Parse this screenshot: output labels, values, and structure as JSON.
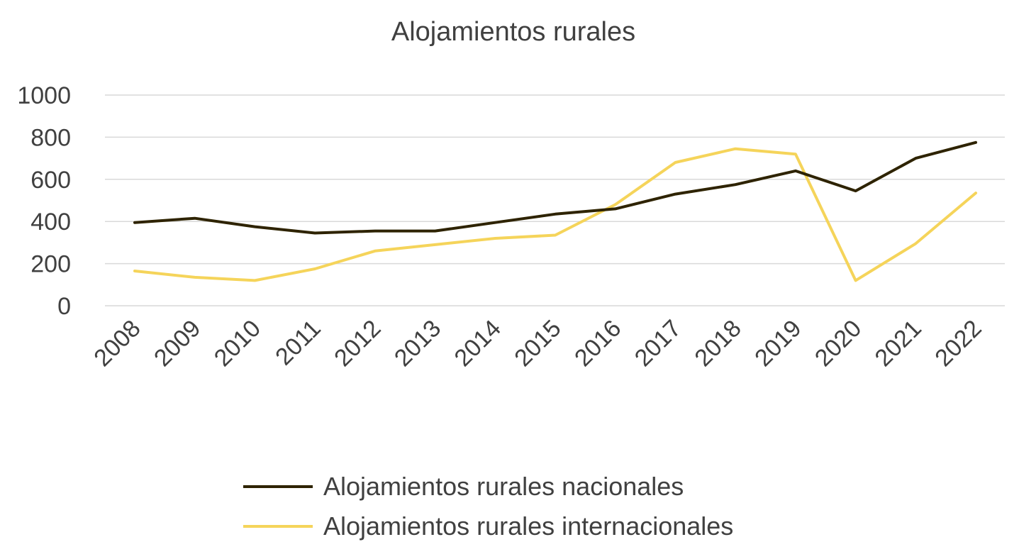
{
  "chart_data": {
    "type": "line",
    "title": "Alojamientos rurales",
    "xlabel": "",
    "ylabel": "",
    "categories": [
      "2008",
      "2009",
      "2010",
      "2011",
      "2012",
      "2013",
      "2014",
      "2015",
      "2016",
      "2017",
      "2018",
      "2019",
      "2020",
      "2021",
      "2022"
    ],
    "ylim": [
      0,
      1000
    ],
    "yticks": [
      0,
      200,
      400,
      600,
      800,
      1000
    ],
    "grid": true,
    "legend_position": "bottom",
    "series": [
      {
        "name": "Alojamientos rurales nacionales",
        "color": "#2e2300",
        "values": [
          395,
          415,
          375,
          345,
          355,
          355,
          395,
          435,
          460,
          530,
          575,
          640,
          545,
          700,
          775
        ]
      },
      {
        "name": "Alojamientos rurales internacionales",
        "color": "#f5d45a",
        "values": [
          165,
          135,
          120,
          175,
          260,
          290,
          320,
          335,
          480,
          680,
          745,
          720,
          120,
          295,
          535
        ]
      }
    ]
  }
}
